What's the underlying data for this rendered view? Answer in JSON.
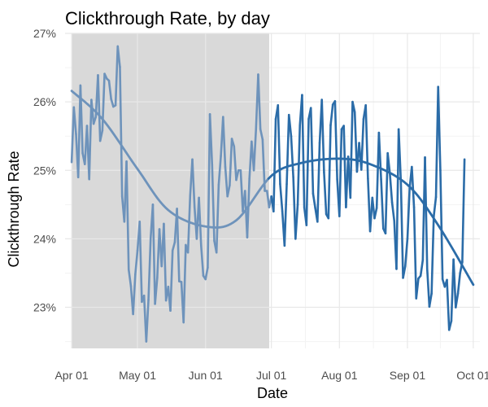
{
  "chart_data": {
    "type": "line",
    "title": "Clickthrough Rate, by day",
    "xlabel": "Date",
    "ylabel": "Clickthrough Rate",
    "xlim": [
      "2019-03-29",
      "2019-10-04"
    ],
    "ylim": [
      0.224,
      0.27
    ],
    "x_ticks": [
      {
        "date": "2019-04-01",
        "label": "Apr 01"
      },
      {
        "date": "2019-05-01",
        "label": "May 01"
      },
      {
        "date": "2019-06-01",
        "label": "Jun 01"
      },
      {
        "date": "2019-07-01",
        "label": "Jul 01"
      },
      {
        "date": "2019-08-01",
        "label": "Aug 01"
      },
      {
        "date": "2019-09-01",
        "label": "Sep 01"
      },
      {
        "date": "2019-10-01",
        "label": "Oct 01"
      }
    ],
    "y_ticks": [
      {
        "value": 0.23,
        "label": "23%"
      },
      {
        "value": 0.24,
        "label": "24%"
      },
      {
        "value": 0.25,
        "label": "25%"
      },
      {
        "value": 0.26,
        "label": "26%"
      },
      {
        "value": 0.27,
        "label": "27%"
      }
    ],
    "shaded_region": {
      "start": "2019-04-01",
      "end": "2019-06-30",
      "color": "#d9d9d9"
    },
    "grid": true,
    "legend": "none",
    "colors": {
      "series_primary": "#2b6ca8",
      "series_faded": "#6e93bb",
      "grid_major": "#e8e8e8",
      "grid_minor": "#f3f3f3"
    },
    "series": [
      {
        "start_date": "2019-04-01",
        "values": [
          0.2512,
          0.2592,
          0.2553,
          0.249,
          0.2624,
          0.2525,
          0.2509,
          0.2565,
          0.2487,
          0.2603,
          0.2568,
          0.2578,
          0.2639,
          0.2543,
          0.2558,
          0.2641,
          0.2634,
          0.2631,
          0.2604,
          0.2593,
          0.2595,
          0.2681,
          0.2651,
          0.2462,
          0.2425,
          0.2513,
          0.2355,
          0.2331,
          0.229,
          0.2348,
          0.2383,
          0.2425,
          0.2308,
          0.2317,
          0.225,
          0.2311,
          0.2401,
          0.245,
          0.2305,
          0.2343,
          0.2414,
          0.236,
          0.2422,
          0.231,
          0.233,
          0.2295,
          0.2383,
          0.2395,
          0.2444,
          0.2338,
          0.2337,
          0.2278,
          0.2391,
          0.238,
          0.2463,
          0.2516,
          0.2446,
          0.24,
          0.246,
          0.239,
          0.2346,
          0.2341,
          0.2358,
          0.2582,
          0.2508,
          0.2397,
          0.238,
          0.2479,
          0.2521,
          0.2578,
          0.2505,
          0.2462,
          0.2478,
          0.2546,
          0.2535,
          0.2486,
          0.25,
          0.25,
          0.244,
          0.247,
          0.2402,
          0.2488,
          0.2542,
          0.25,
          0.256,
          0.264,
          0.256,
          0.2545,
          0.247,
          0.247,
          0.2446,
          0.2462,
          0.244,
          0.2575,
          0.2595,
          0.248,
          0.244,
          0.239,
          0.248,
          0.2581,
          0.255,
          0.249,
          0.24,
          0.245,
          0.2566,
          0.261,
          0.2446,
          0.242,
          0.2575,
          0.2591,
          0.2466,
          0.2445,
          0.2425,
          0.254,
          0.2603,
          0.2497,
          0.2436,
          0.243,
          0.2566,
          0.2596,
          0.2601,
          0.2487,
          0.2433,
          0.256,
          0.2565,
          0.2446,
          0.252,
          0.246,
          0.26,
          0.2585,
          0.2498,
          0.254,
          0.2501,
          0.2575,
          0.2595,
          0.2488,
          0.2411,
          0.246,
          0.243,
          0.2445,
          0.2555,
          0.2487,
          0.2415,
          0.2408,
          0.2525,
          0.2495,
          0.2453,
          0.2426,
          0.2356,
          0.256,
          0.2484,
          0.2343,
          0.236,
          0.24,
          0.2474,
          0.2505,
          0.2446,
          0.2313,
          0.2342,
          0.2346,
          0.2369,
          0.2519,
          0.2356,
          0.2301,
          0.232,
          0.2433,
          0.2461,
          0.2622,
          0.25,
          0.2341,
          0.233,
          0.234,
          0.2267,
          0.228,
          0.237,
          0.23,
          0.232,
          0.235,
          0.2366,
          0.2516
        ]
      },
      {
        "type": "smooth",
        "x": [
          "2019-04-01",
          "2019-04-15",
          "2019-05-01",
          "2019-05-15",
          "2019-06-01",
          "2019-06-15",
          "2019-07-01",
          "2019-07-15",
          "2019-08-01",
          "2019-08-15",
          "2019-09-01",
          "2019-09-15",
          "2019-10-01"
        ],
        "values": [
          0.2616,
          0.2575,
          0.2502,
          0.2442,
          0.2418,
          0.2427,
          0.2492,
          0.2511,
          0.2517,
          0.2509,
          0.2479,
          0.242,
          0.2333
        ]
      }
    ]
  }
}
